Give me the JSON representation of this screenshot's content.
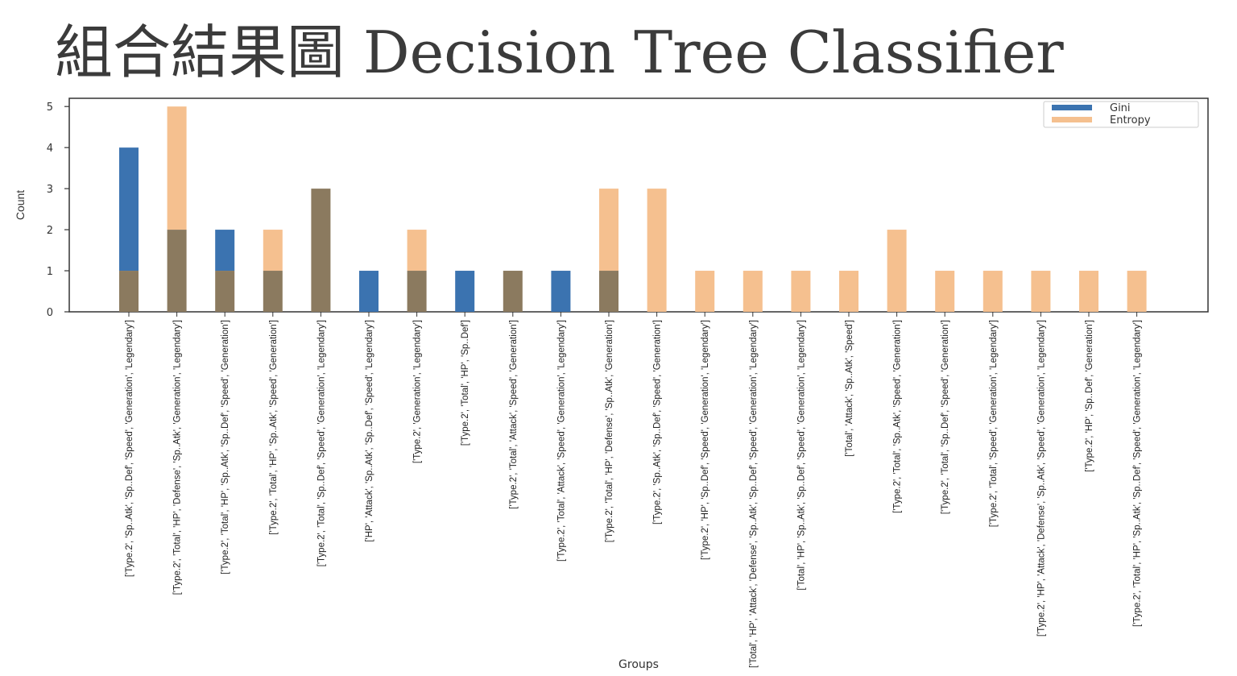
{
  "slide": {
    "title": "組合結果圖 Decision Tree Classifier"
  },
  "chart_data": {
    "type": "bar",
    "xlabel": "Groups",
    "ylabel": "Count",
    "ylim": [
      0,
      5.2
    ],
    "yticks": [
      0,
      1,
      2,
      3,
      4,
      5
    ],
    "grid": false,
    "legend_position": "top-right",
    "overlay": true,
    "categories": [
      "['Type.2', 'Sp..Atk', 'Sp..Def', 'Speed', 'Generation', 'Legendary']",
      "['Type.2', 'Total', 'HP', 'Defense', 'Sp..Atk', 'Generation', 'Legendary']",
      "['Type.2', 'Total', 'HP', 'Sp..Atk', 'Sp..Def', 'Speed', 'Generation']",
      "['Type.2', 'Total', 'HP', 'Sp..Atk', 'Speed', 'Generation']",
      "['Type.2', 'Total', 'Sp..Def', 'Speed', 'Generation', 'Legendary']",
      "['HP', 'Attack', 'Sp..Atk', 'Sp..Def', 'Speed', 'Legendary']",
      "['Type.2', 'Generation', 'Legendary']",
      "['Type.2', 'Total', 'HP', 'Sp..Def']",
      "['Type.2', 'Total', 'Attack', 'Speed', 'Generation']",
      "['Type.2', 'Total', 'Attack', 'Speed', 'Generation', 'Legendary']",
      "['Type.2', 'Total', 'HP', 'Defense', 'Sp..Atk', 'Generation']",
      "['Type.2', 'Sp..Atk', 'Sp..Def', 'Speed', 'Generation']",
      "['Type.2', 'HP', 'Sp..Def', 'Speed', 'Generation', 'Legendary']",
      "['Total', 'HP', 'Attack', 'Defense', 'Sp..Atk', 'Sp..Def', 'Speed', 'Generation', 'Legendary']",
      "['Total', 'HP', 'Sp..Atk', 'Sp..Def', 'Speed', 'Generation', 'Legendary']",
      "['Total', 'Attack', 'Sp..Atk', 'Speed']",
      "['Type.2', 'Total', 'Sp..Atk', 'Speed', 'Generation']",
      "['Type.2', 'Total', 'Sp..Def', 'Speed', 'Generation']",
      "['Type.2', 'Total', 'Speed', 'Generation', 'Legendary']",
      "['Type.2', 'HP', 'Attack', 'Defense', 'Sp..Atk', 'Speed', 'Generation', 'Legendary']",
      "['Type.2', 'HP', 'Sp..Def', 'Generation']",
      "['Type.2', 'Total', 'HP', 'Sp..Atk', 'Sp..Def', 'Speed', 'Generation', 'Legendary']"
    ],
    "series": [
      {
        "name": "Gini",
        "color": "#3b73b0",
        "values": [
          4,
          2,
          2,
          1,
          3,
          1,
          1,
          1,
          1,
          1,
          1,
          0,
          0,
          0,
          0,
          0,
          0,
          0,
          0,
          0,
          0,
          0
        ]
      },
      {
        "name": "Entropy",
        "color": "#f5c08f",
        "values": [
          1,
          5,
          1,
          2,
          3,
          0,
          2,
          0,
          1,
          0,
          3,
          3,
          1,
          1,
          1,
          1,
          2,
          1,
          1,
          1,
          1,
          1
        ]
      }
    ],
    "overlap_color": "#8b7a5f"
  }
}
